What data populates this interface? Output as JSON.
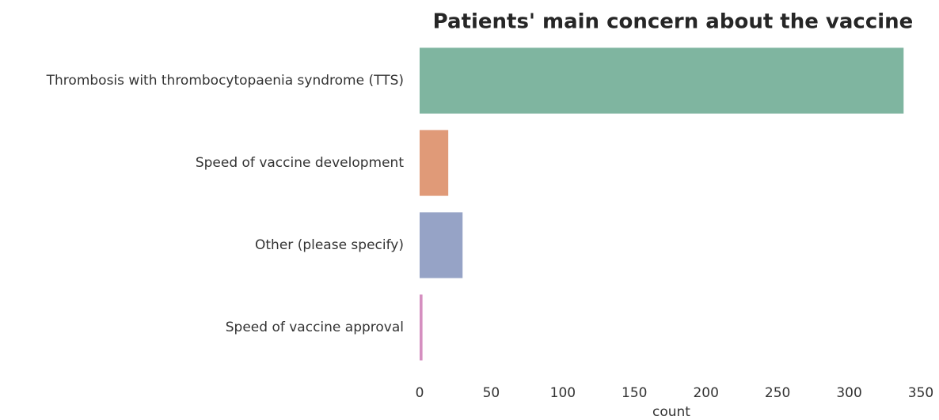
{
  "chart_data": {
    "type": "barh",
    "title": "Patients' main concern about the vaccine",
    "categories": [
      "Thrombosis with thrombocytopaenia syndrome (TTS)",
      "Speed of vaccine development",
      "Other (please specify)",
      "Speed of vaccine approval"
    ],
    "values": [
      338,
      20,
      30,
      2
    ],
    "colors": [
      "#7fb5a0",
      "#e09a78",
      "#96a3c6",
      "#d58fc0"
    ],
    "x_label": "count",
    "xlim": [
      0,
      350
    ],
    "xticks": [
      0,
      50,
      100,
      150,
      200,
      250,
      300,
      350
    ],
    "grid": false
  }
}
